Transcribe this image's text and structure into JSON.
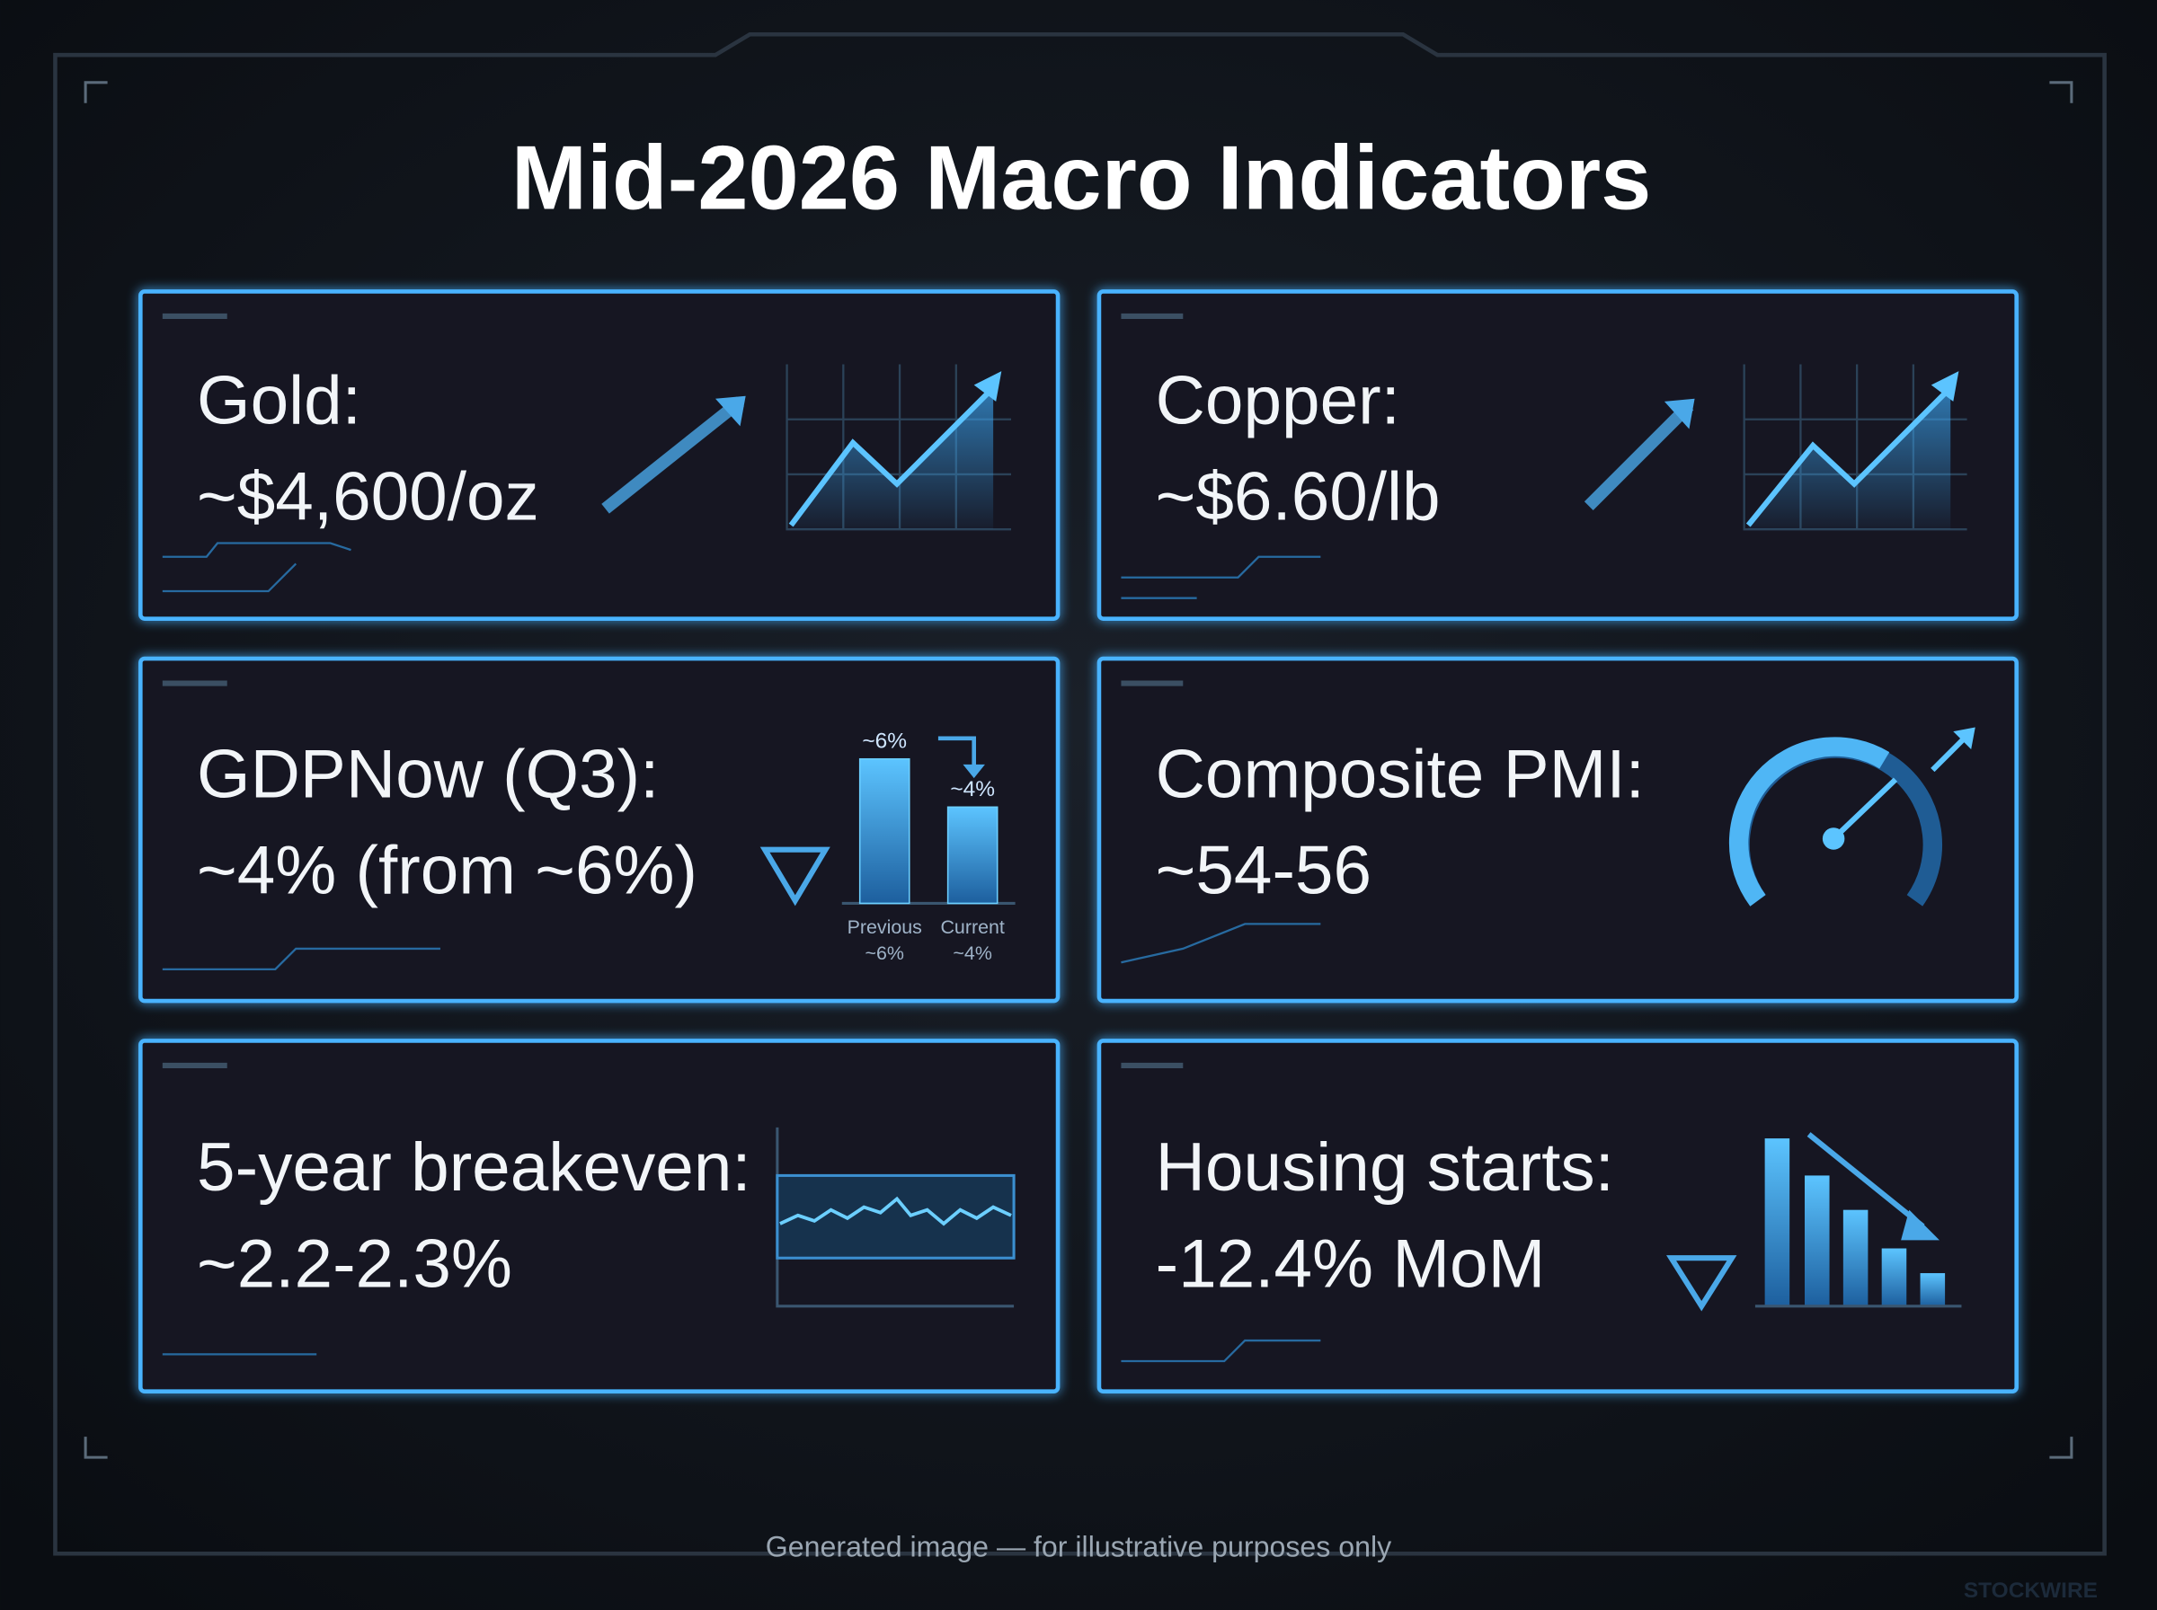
{
  "title": "Mid-2026 Macro Indicators",
  "cards": [
    {
      "label": "Gold:",
      "value": "~$4,600/oz"
    },
    {
      "label": "Copper:",
      "value": "~$6.60/lb"
    },
    {
      "label": "GDPNow (Q3):",
      "value": "~4% (from ~6%)",
      "mini_chart": {
        "bars": [
          {
            "name": "Previous",
            "value": 6,
            "value_label": "~6%",
            "caption": "~6%"
          },
          {
            "name": "Current",
            "value": 4,
            "value_label": "~4%",
            "caption": "~4%"
          }
        ]
      }
    },
    {
      "label": "Composite PMI:",
      "value": "~54-56"
    },
    {
      "label": "5-year breakeven:",
      "value": "~2.2-2.3%"
    },
    {
      "label": "Housing starts:",
      "value": "-12.4% MoM"
    }
  ],
  "footer": "Generated image — for illustrative purposes only",
  "watermark": "STOCKWIRE"
}
